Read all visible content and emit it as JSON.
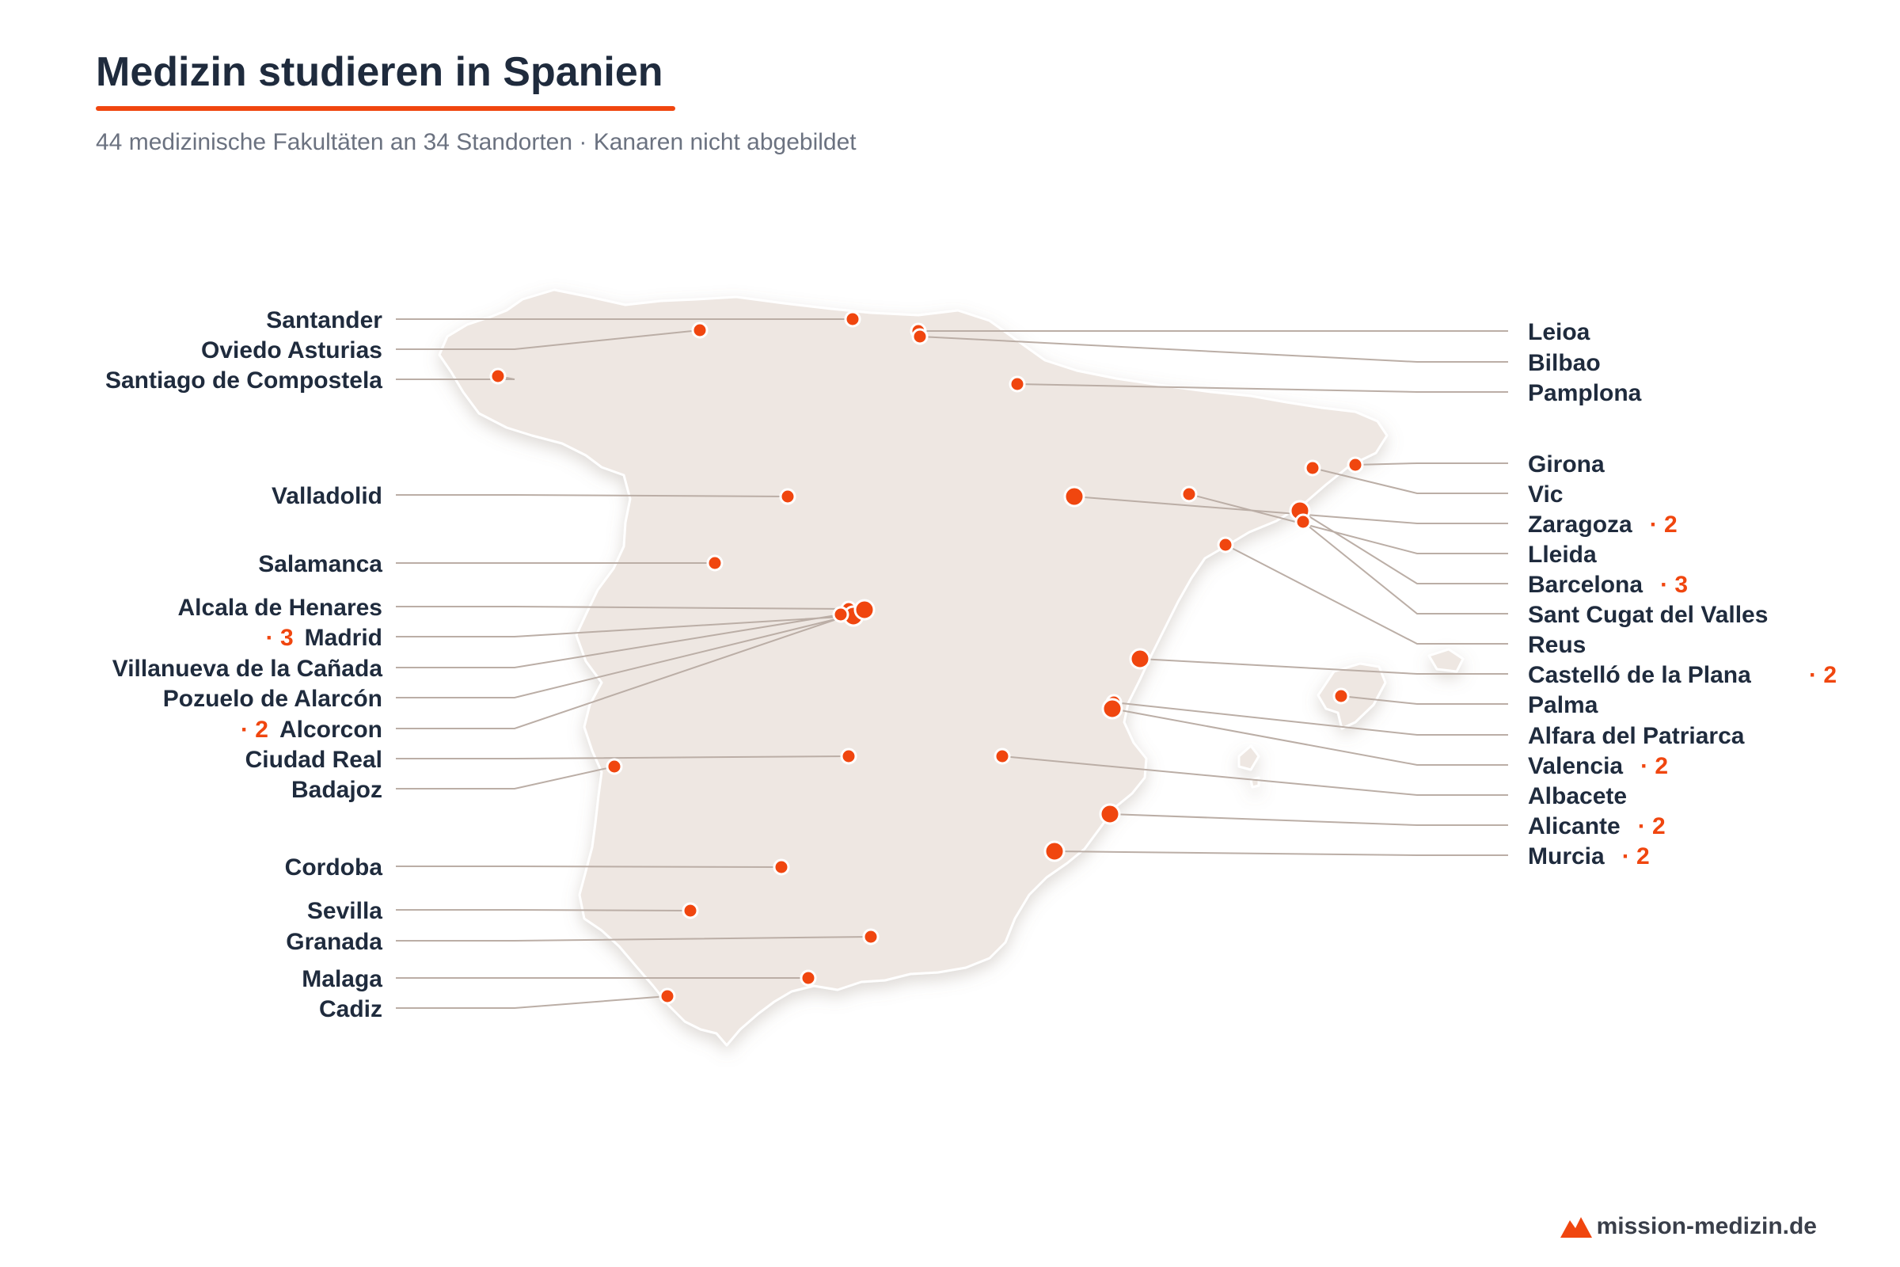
{
  "title": "Medizin studieren in Spanien",
  "subtitle": "44 medizinische Fakultäten an 34 Standorten · Kanaren nicht abgebildet",
  "brand": "mission-medizin.de",
  "colors": {
    "accent": "#f0460f",
    "land": "#eee7e2",
    "land_stroke": "#ffffff",
    "leader_line": "#bbaea6",
    "text": "#1f2b3d",
    "subtext": "#6b7280"
  },
  "map_labels": {
    "left": [
      {
        "name": "Santander",
        "count": null
      },
      {
        "name": "Oviedo Asturias",
        "count": null
      },
      {
        "name": "Santiago de Compostela",
        "count": null
      },
      {
        "name": "Valladolid",
        "count": null
      },
      {
        "name": "Salamanca",
        "count": null
      },
      {
        "name": "Alcala de Henares",
        "count": null
      },
      {
        "name": "Madrid",
        "count": "· 3"
      },
      {
        "name": "Villanueva de la Cañada",
        "count": null
      },
      {
        "name": "Pozuelo de Alarcón",
        "count": null
      },
      {
        "name": "Alcorcon",
        "count": "· 2"
      },
      {
        "name": "Ciudad Real",
        "count": null
      },
      {
        "name": "Badajoz",
        "count": null
      },
      {
        "name": "Cordoba",
        "count": null
      },
      {
        "name": "Sevilla",
        "count": null
      },
      {
        "name": "Granada",
        "count": null
      },
      {
        "name": "Malaga",
        "count": null
      },
      {
        "name": "Cadiz",
        "count": null
      }
    ],
    "right": [
      {
        "name": "Leioa",
        "count": null
      },
      {
        "name": "Bilbao",
        "count": null
      },
      {
        "name": "Pamplona",
        "count": null
      },
      {
        "name": "Girona",
        "count": null
      },
      {
        "name": "Vic",
        "count": null
      },
      {
        "name": "Zaragoza",
        "count": "· 2"
      },
      {
        "name": "Lleida",
        "count": null
      },
      {
        "name": "Barcelona",
        "count": "· 3"
      },
      {
        "name": "Sant Cugat del Valles",
        "count": null
      },
      {
        "name": "Reus",
        "count": null
      },
      {
        "name": "Castelló de la Plana",
        "count": "· 2"
      },
      {
        "name": "Palma",
        "count": null
      },
      {
        "name": "Alfara del Patriarca",
        "count": null
      },
      {
        "name": "Valencia",
        "count": "· 2"
      },
      {
        "name": "Albacete",
        "count": null
      },
      {
        "name": "Alicante",
        "count": "· 2"
      },
      {
        "name": "Murcia",
        "count": "· 2"
      }
    ]
  }
}
